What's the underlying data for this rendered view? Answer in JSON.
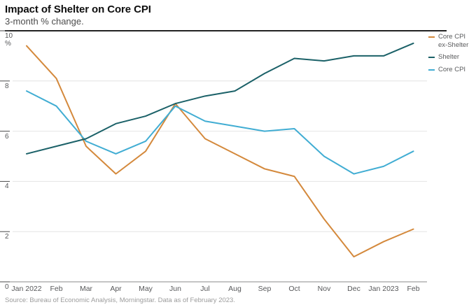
{
  "header": {
    "title": "Impact of Shelter on Core CPI",
    "subtitle": "3-month % change."
  },
  "source": "Source: Bureau of Economic Analysis, Morningstar. Data as of February 2023.",
  "style": {
    "grid_color": "#e4e4e4",
    "axis_color": "#8a8a8a",
    "tick_color": "#4a4a4a",
    "rule_color": "#222222",
    "label_color": "#57585a"
  },
  "chart_data": {
    "type": "line",
    "title": "Impact of Shelter on Core CPI",
    "subtitle": "3-month % change.",
    "x": [
      "Jan 2022",
      "Feb",
      "Mar",
      "Apr",
      "May",
      "Jun",
      "Jul",
      "Aug",
      "Sep",
      "Oct",
      "Nov",
      "Dec",
      "Jan 2023",
      "Feb"
    ],
    "ylabel": "%",
    "ylim": [
      0,
      10
    ],
    "yticks": [
      0,
      2,
      4,
      6,
      8,
      10
    ],
    "grid": true,
    "legend_position": "right",
    "series": [
      {
        "name": "Core CPI ex-Shelter",
        "color": "#d4893c",
        "values": [
          9.4,
          8.1,
          5.4,
          4.3,
          5.2,
          7.1,
          5.7,
          5.1,
          4.5,
          4.2,
          2.5,
          1.0,
          1.6,
          2.1
        ]
      },
      {
        "name": "Shelter",
        "color": "#1b6168",
        "values": [
          5.1,
          5.4,
          5.7,
          6.3,
          6.6,
          7.1,
          7.4,
          7.6,
          8.3,
          8.9,
          8.8,
          9.0,
          9.0,
          9.5
        ]
      },
      {
        "name": "Core CPI",
        "color": "#41add3",
        "values": [
          7.6,
          7.0,
          5.6,
          5.1,
          5.6,
          7.0,
          6.4,
          6.2,
          6.0,
          6.1,
          5.0,
          4.3,
          4.6,
          5.2
        ]
      }
    ]
  }
}
